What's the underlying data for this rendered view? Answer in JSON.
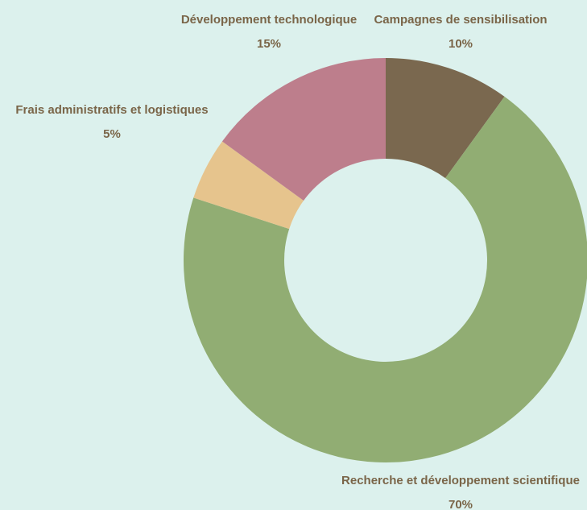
{
  "chart_data": {
    "type": "pie",
    "donut": true,
    "title": "",
    "background_color": "#dcf1ed",
    "label_color": "#7a6548",
    "slices": [
      {
        "label": "Campagnes de sensibilisation",
        "value": 10,
        "display": "10%",
        "color": "#7a684f"
      },
      {
        "label": "Recherche et développement scientifique",
        "value": 70,
        "display": "70%",
        "color": "#91ad73"
      },
      {
        "label": "Frais administratifs et logistiques",
        "value": 5,
        "display": "5%",
        "color": "#e6c48d"
      },
      {
        "label": "Développement technologique",
        "value": 15,
        "display": "15%",
        "color": "#bd7e8c"
      }
    ]
  }
}
